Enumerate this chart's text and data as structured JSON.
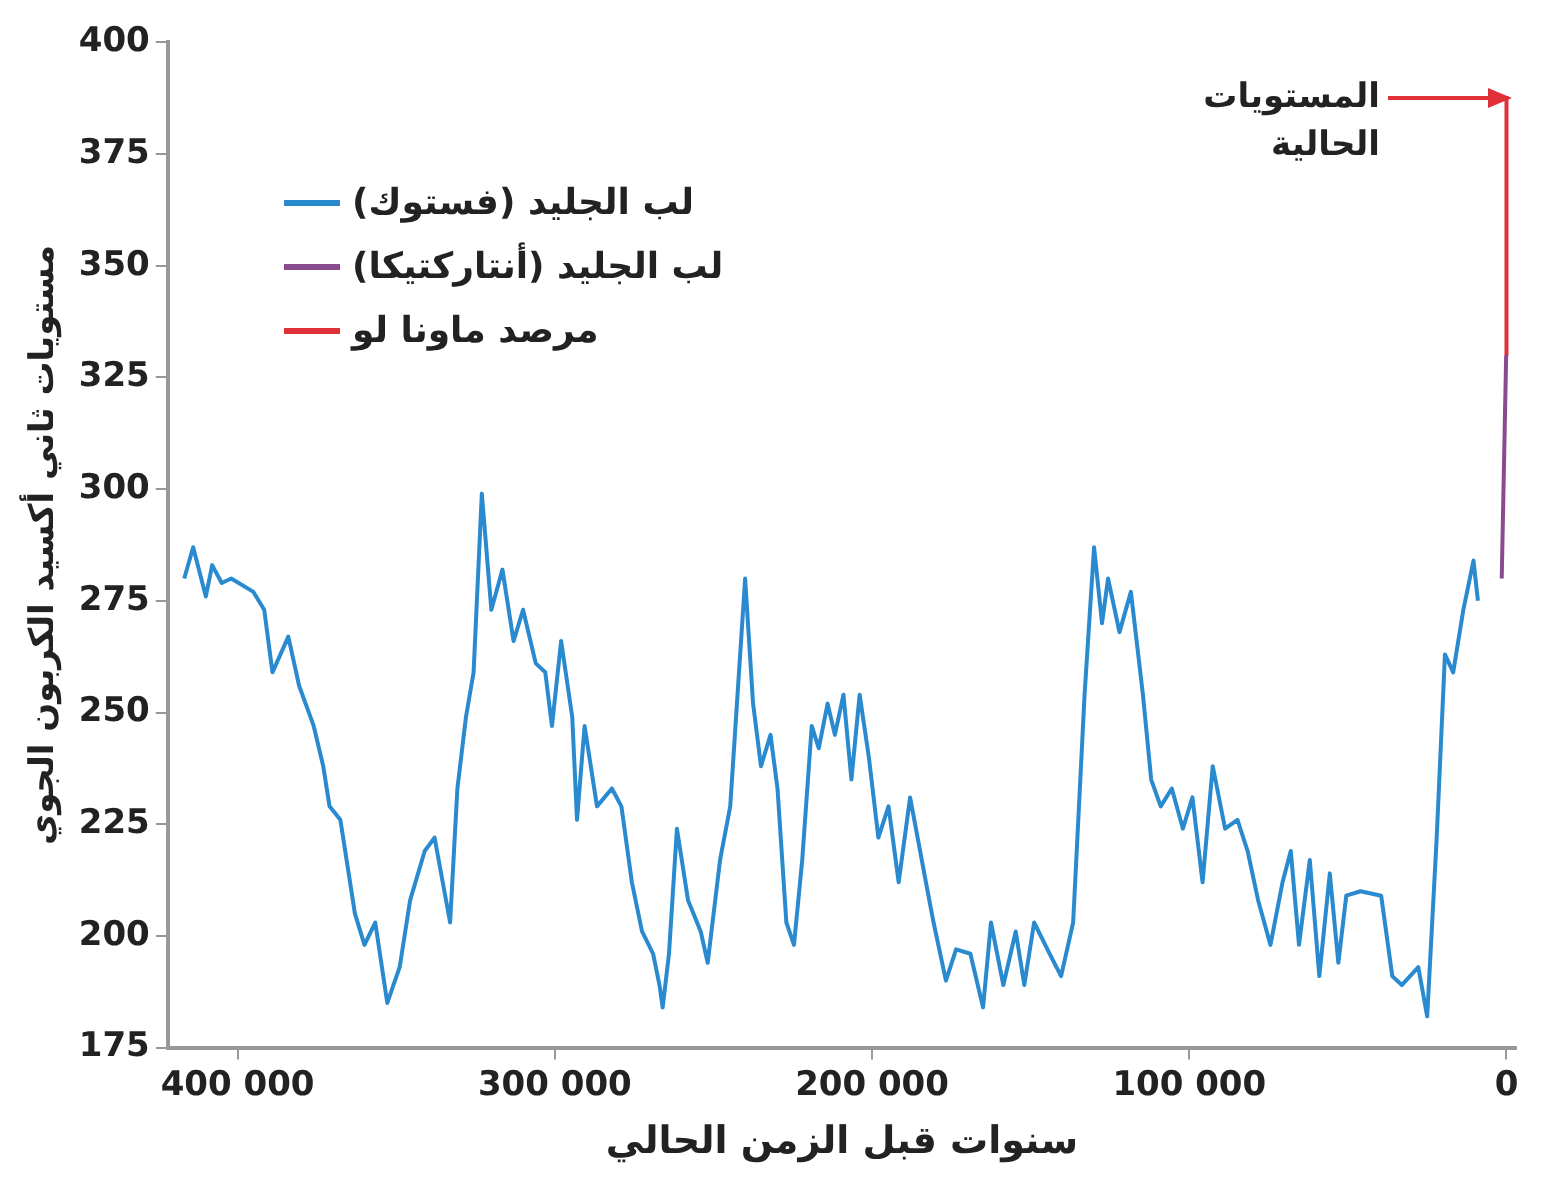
{
  "chart_data": {
    "type": "line",
    "xlabel": "سنوات قبل الزمن الحالي",
    "ylabel": "مستويات ثاني أكسيد الكربون الجوي",
    "xlim": [
      422000,
      -3000
    ],
    "xticks": [
      {
        "value": 400000,
        "label": "400 000"
      },
      {
        "value": 300000,
        "label": "300 000"
      },
      {
        "value": 200000,
        "label": "200 000"
      },
      {
        "value": 100000,
        "label": "100 000"
      },
      0
    ],
    "ylim": [
      175,
      400
    ],
    "yticks": [
      175,
      200,
      225,
      250,
      275,
      300,
      325,
      350,
      375,
      400
    ],
    "grid": false,
    "legend": "top left",
    "marker": "none",
    "line_style": "solid",
    "series": [
      {
        "name": "لب الجليد (فستوك)",
        "color": "#2a8ad0",
        "x": [
          416800,
          414000,
          410000,
          408000,
          405000,
          402000,
          395000,
          391600,
          389000,
          384000,
          380600,
          376000,
          373000,
          371000,
          367600,
          363000,
          360000,
          356600,
          352800,
          348900,
          345600,
          341000,
          337900,
          333000,
          330700,
          328000,
          325600,
          323000,
          320000,
          316500,
          313000,
          310000,
          306000,
          303000,
          300900,
          298000,
          294500,
          293000,
          290600,
          286700,
          282000,
          279000,
          275700,
          272500,
          269000,
          267000,
          266000,
          264000,
          261500,
          258000,
          254000,
          251800,
          247900,
          244700,
          240000,
          237500,
          235000,
          232000,
          229800,
          227000,
          224600,
          222000,
          219000,
          216800,
          214000,
          211700,
          209000,
          206500,
          203900,
          201000,
          198000,
          194800,
          191600,
          188000,
          183000,
          180600,
          176700,
          173500,
          169000,
          165000,
          162500,
          158600,
          154700,
          152000,
          148900,
          144000,
          140400,
          136600,
          133000,
          130000,
          127500,
          125600,
          122000,
          118400,
          114600,
          112000,
          109000,
          105500,
          102000,
          99000,
          95800,
          92600,
          88700,
          84800,
          81600,
          78300,
          74400,
          70600,
          68000,
          65400,
          62000,
          59000,
          55700,
          53000,
          50500,
          46000,
          39500,
          36000,
          33000,
          27800,
          25000,
          22000,
          19400,
          16800,
          13600,
          10400,
          9000
        ],
        "values": [
          280,
          287,
          276,
          283,
          279,
          280,
          277,
          273,
          259,
          267,
          256,
          247,
          238,
          229,
          226,
          205,
          198,
          203,
          185,
          193,
          208,
          219,
          222,
          203,
          233,
          249,
          259,
          299,
          273,
          282,
          266,
          273,
          261,
          259,
          247,
          266,
          249,
          226,
          247,
          229,
          233,
          229,
          212,
          201,
          196,
          189,
          184,
          196,
          224,
          208,
          201,
          194,
          217,
          229,
          280,
          252,
          238,
          245,
          233,
          203,
          198,
          217,
          247,
          242,
          252,
          245,
          254,
          235,
          254,
          240,
          222,
          229,
          212,
          231,
          212,
          203,
          190,
          197,
          196,
          184,
          203,
          189,
          201,
          189,
          203,
          196,
          191,
          203,
          254,
          287,
          270,
          280,
          268,
          277,
          254,
          235,
          229,
          233,
          224,
          231,
          212,
          238,
          224,
          226,
          219,
          208,
          198,
          212,
          219,
          198,
          217,
          191,
          214,
          194,
          209,
          210,
          209,
          191,
          189,
          193,
          182,
          222,
          263,
          259,
          273,
          284,
          275
        ]
      },
      {
        "name": "لب الجليد (أنتاركتيكا)",
        "color": "#8a4a8e",
        "x": [
          1500,
          100
        ],
        "values": [
          280,
          330
        ]
      },
      {
        "name": "مرصد ماونا لو",
        "color": "#e0303a",
        "x": [
          60,
          0
        ],
        "values": [
          330,
          388
        ]
      }
    ],
    "annotations": [
      "المستويات الحالية"
    ]
  }
}
